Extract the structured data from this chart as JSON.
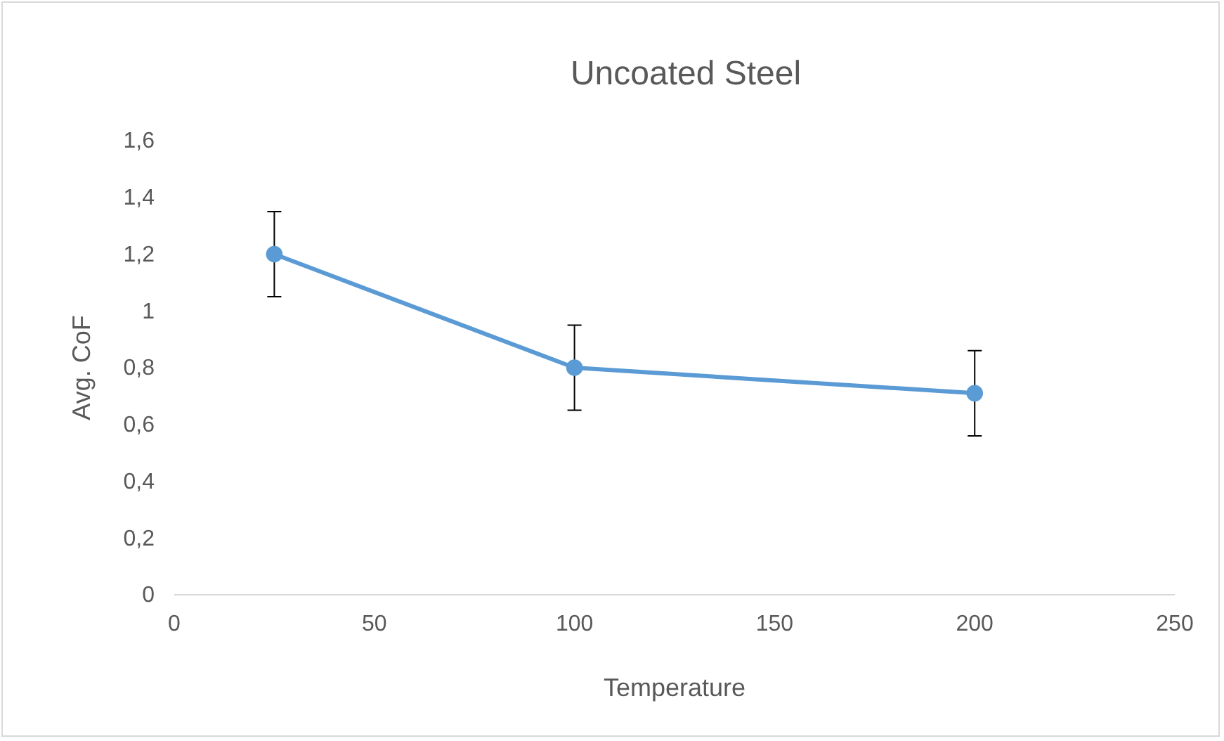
{
  "chart_data": {
    "type": "line",
    "title": "Uncoated Steel",
    "xlabel": "Temperature",
    "ylabel": "Avg. CoF",
    "x": [
      25,
      100,
      200
    ],
    "series": [
      {
        "color": "#5b9bd5",
        "values": [
          1.2,
          0.8,
          0.71
        ],
        "errors": [
          0.15,
          0.15,
          0.15
        ]
      }
    ],
    "xlim": [
      0,
      250
    ],
    "xticks": [
      0,
      50,
      100,
      150,
      200,
      250
    ],
    "ylim": [
      0,
      1.6
    ],
    "yticks": [
      0,
      {
        "value": 0.2,
        "label": "0,2"
      },
      {
        "value": 0.4,
        "label": "0,4"
      },
      {
        "value": 0.6,
        "label": "0,6"
      },
      {
        "value": 0.8,
        "label": "0,8"
      },
      1,
      {
        "value": 1.2,
        "label": "1,2"
      },
      {
        "value": 1.4,
        "label": "1,4"
      },
      {
        "value": 1.6,
        "label": "1,6"
      }
    ],
    "grid": false,
    "marker": "circle",
    "line_style": "solid"
  }
}
